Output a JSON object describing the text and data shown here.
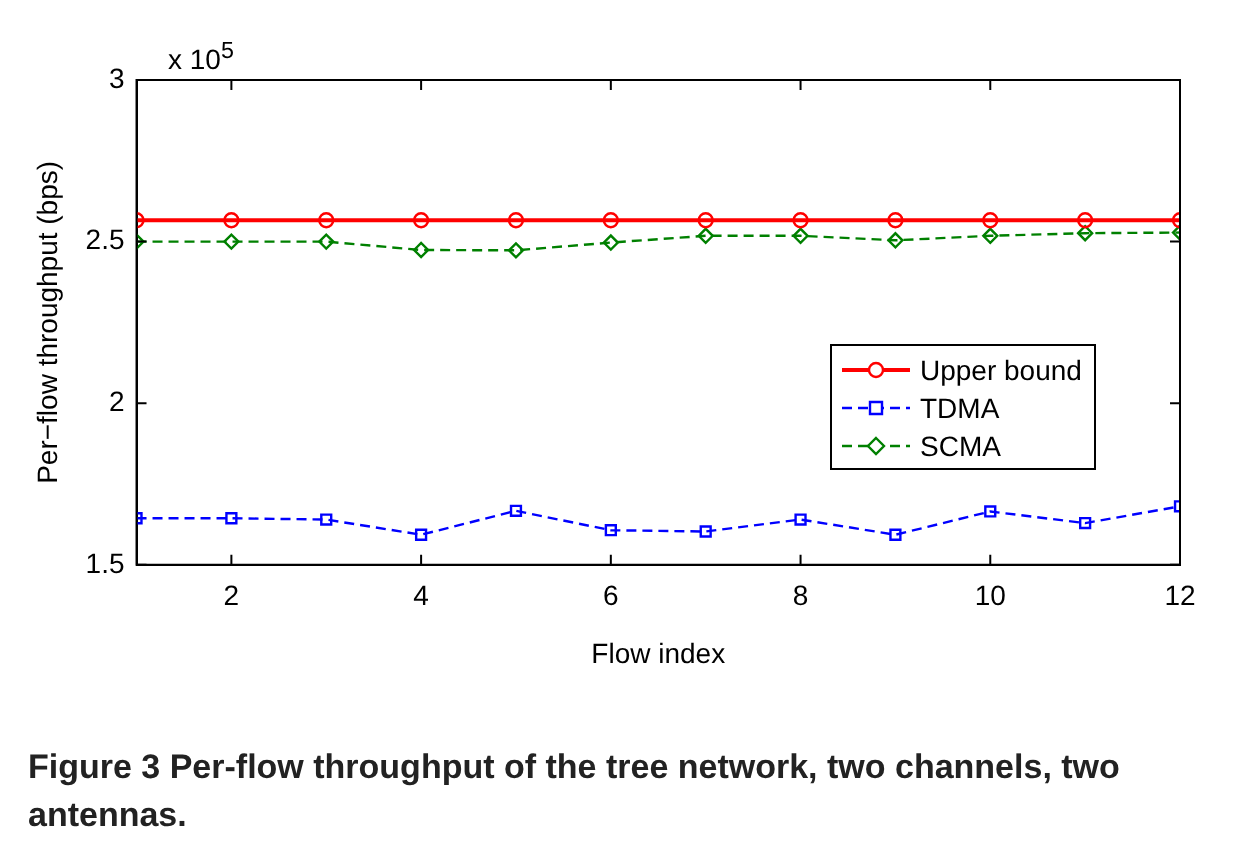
{
  "chart_data": {
    "type": "line",
    "title": "Figure 3 Per-flow throughput of the tree network, two channels, two antennas.",
    "xlabel": "Flow index",
    "ylabel": "Per−flow throughput (bps)",
    "annotations": [
      "x 10$^{5}$"
    ],
    "x": [
      1,
      2,
      3,
      4,
      5,
      6,
      7,
      8,
      9,
      10,
      11,
      12
    ],
    "series": [
      {
        "name": "Upper bound",
        "color": "#ff0000",
        "marker": "circle",
        "line_style": "solid",
        "values": [
          2.566,
          2.566,
          2.566,
          2.566,
          2.566,
          2.566,
          2.566,
          2.566,
          2.566,
          2.566,
          2.566,
          2.566
        ]
      },
      {
        "name": "TDMA",
        "color": "#0000ff",
        "marker": "square",
        "line_style": "dashed",
        "values": [
          1.644,
          1.644,
          1.64,
          1.593,
          1.667,
          1.607,
          1.603,
          1.64,
          1.593,
          1.665,
          1.629,
          1.681
        ]
      },
      {
        "name": "SCMA",
        "color": "#008000",
        "marker": "diamond",
        "line_style": "dashed",
        "values": [
          2.5,
          2.5,
          2.5,
          2.474,
          2.473,
          2.497,
          2.518,
          2.518,
          2.504,
          2.518,
          2.526,
          2.528
        ]
      }
    ],
    "xlim": [
      1,
      12
    ],
    "xticks": [
      2,
      4,
      6,
      8,
      10,
      12
    ],
    "ylim": [
      1.5,
      3
    ],
    "yticks": [
      1.5,
      2,
      2.5,
      3
    ],
    "grid": false,
    "legend": "right"
  }
}
